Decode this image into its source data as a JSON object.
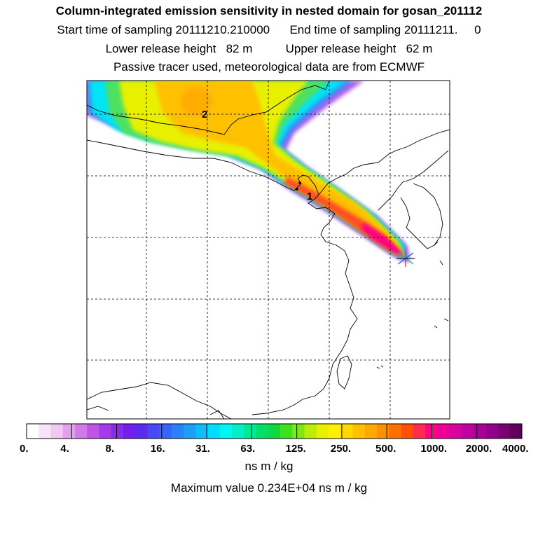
{
  "header": {
    "title": "Column-integrated emission sensitivity in nested domain for gosan_201112",
    "sampling_line": "Start time of sampling 20111210.210000      End time of sampling 20111211.     0",
    "release_line": "Lower release height   82 m          Upper release height   62 m",
    "tracer_line": "Passive tracer used, meteorological data are from ECMWF"
  },
  "chart_data": {
    "type": "heatmap",
    "title": "Column-integrated emission sensitivity in nested domain for gosan_201112",
    "colorbar": {
      "unit": "ns m / kg",
      "labels": [
        "0.",
        "4.",
        "8.",
        "16.",
        "31.",
        "63.",
        "125.",
        "250.",
        "500.",
        "1000.",
        "2000.",
        "4000."
      ],
      "colors": [
        "#ffffff",
        "#f7e4f8",
        "#efc9f2",
        "#e1a1ef",
        "#d07ae8",
        "#bf55e6",
        "#a43ae8",
        "#8a2ce8",
        "#7020ea",
        "#5a2cf0",
        "#4848f5",
        "#3a64f8",
        "#2a82fa",
        "#1aa0fb",
        "#0cbffc",
        "#00dcfc",
        "#00f6f0",
        "#00f0c4",
        "#00e896",
        "#00e068",
        "#10d840",
        "#40e020",
        "#80e810",
        "#b8ee08",
        "#e8f000",
        "#fff000",
        "#ffd800",
        "#ffc000",
        "#ffa800",
        "#ff9000",
        "#ff7000",
        "#ff5000",
        "#ff2a50",
        "#ff0088",
        "#f00098",
        "#d800a0",
        "#c000a0",
        "#a80098",
        "#900088",
        "#780070",
        "#600058"
      ]
    },
    "maximum_value": "Maximum value  0.234E+04 ns m / kg",
    "annotations": [
      "1",
      "2"
    ],
    "receptor": "gosan"
  }
}
